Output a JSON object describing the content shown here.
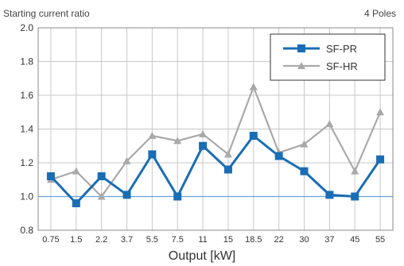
{
  "chart_data": {
    "type": "line",
    "title": "Starting current ratio",
    "annotation": "4 Poles",
    "xlabel": "Output [kW]",
    "ylabel": "",
    "categories": [
      "0.75",
      "1.5",
      "2.2",
      "3.7",
      "5.5",
      "7.5",
      "11",
      "15",
      "18.5",
      "22",
      "30",
      "37",
      "45",
      "55"
    ],
    "ylim": [
      0.8,
      2.0
    ],
    "yticks": [
      "0.8",
      "1.0",
      "1.2",
      "1.4",
      "1.6",
      "1.8",
      "2.0"
    ],
    "reference_line": 1.0,
    "grid": true,
    "legend_position": "top-right",
    "series": [
      {
        "name": "SF-PR",
        "color": "#1a6db5",
        "marker": "square",
        "values": [
          1.12,
          0.96,
          1.12,
          1.01,
          1.25,
          1.0,
          1.3,
          1.16,
          1.36,
          1.24,
          1.15,
          1.01,
          1.0,
          1.22
        ]
      },
      {
        "name": "SF-HR",
        "color": "#a9a9a9",
        "marker": "triangle",
        "values": [
          1.1,
          1.15,
          1.0,
          1.21,
          1.36,
          1.33,
          1.37,
          1.25,
          1.65,
          1.26,
          1.31,
          1.43,
          1.15,
          1.5
        ]
      }
    ],
    "colors": {
      "grid": "#c8c8c8",
      "axis": "#888888",
      "reference": "#6aa3d5"
    }
  }
}
